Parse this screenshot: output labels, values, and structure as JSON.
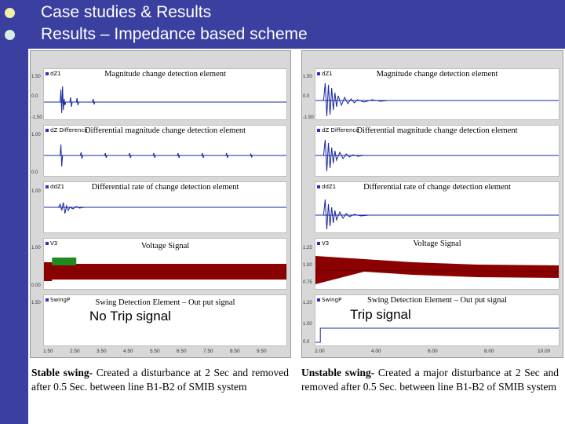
{
  "slide": {
    "title": "Case studies & Results",
    "subtitle": "Results – Impedance based scheme"
  },
  "left": {
    "plots": [
      {
        "signal": "dZ1",
        "label": "Magnitude change detection element"
      },
      {
        "signal": "dZ Difference",
        "label": "Differential magnitude change detection element"
      },
      {
        "signal": "ddZ1",
        "label": "Differential rate of change detection element"
      },
      {
        "signal": "V3",
        "label": "Voltage Signal"
      },
      {
        "signal": "SwingP",
        "label": "Swing Detection Element – Out put signal"
      }
    ],
    "result": "No Trip signal",
    "yticks": [
      "1.50",
      "0.0",
      "-1.50",
      "1.00",
      "0.0",
      "1.00",
      "1.00",
      "0.00",
      "1.50"
    ],
    "xticks": [
      "1.50",
      "2.50",
      "3.50",
      "4.50",
      "5.50",
      "6.50",
      "7.50",
      "8.50",
      "9.50"
    ],
    "caption": {
      "bold": "Stable swing-",
      "text": " Created a disturbance at 2 Sec and removed after 0.5 Sec. between line B1-B2 of SMIB system"
    }
  },
  "right": {
    "plots": [
      {
        "signal": "dZ1",
        "label": "Magnitude change detection element"
      },
      {
        "signal": "dZ Difference",
        "label": "Differential magnitude change detection element"
      },
      {
        "signal": "ddZ1",
        "label": "Differential rate of change detection element"
      },
      {
        "signal": "V3",
        "label": "Voltage Signal"
      },
      {
        "signal": "SwingP",
        "label": "Swing Detection Element – Out put signal"
      }
    ],
    "result": "Trip signal",
    "yticks": [
      "1.50",
      "0.0",
      "-1.50",
      "1.25",
      "1.00",
      "0.75",
      "1.20",
      "1.00",
      "0.0"
    ],
    "xticks": [
      "2.00",
      "4.00",
      "6.00",
      "8.00",
      "10.00"
    ],
    "caption": {
      "bold": "Unstable swing-",
      "text": " Created a major disturbance at 2 Sec and removed after 0.5 Sec. between line B1-B2 of SMIB system"
    }
  },
  "colors": {
    "slide_bar": "#3a3fa0",
    "wave_blue": "#1a2aa0",
    "voltage_red": "#8b0000",
    "voltage_green": "#1f8a1f"
  }
}
